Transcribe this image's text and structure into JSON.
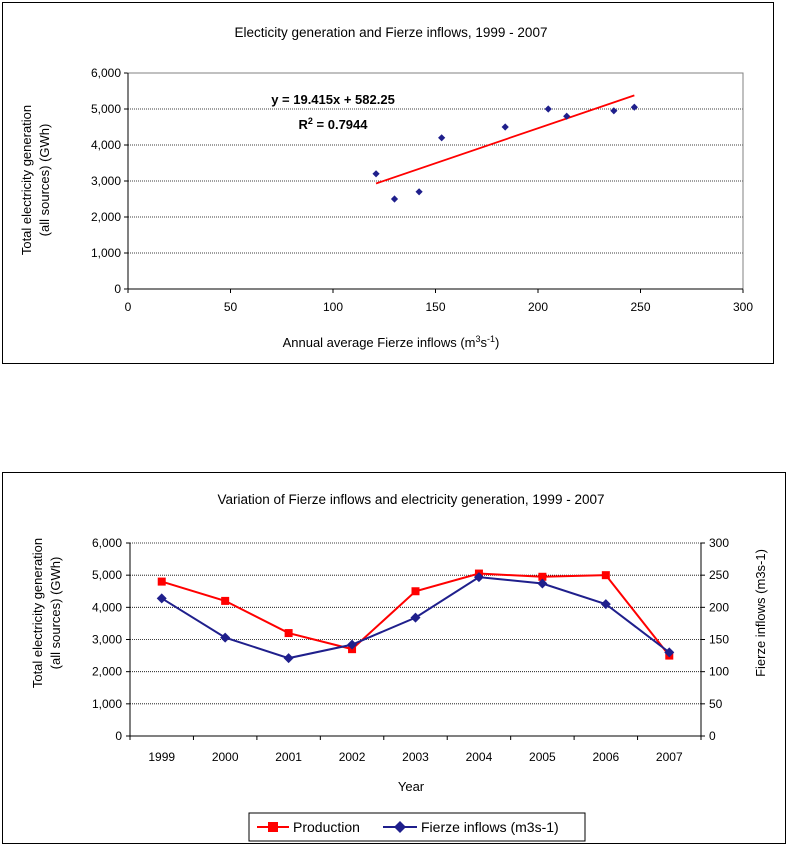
{
  "chart_data": [
    {
      "type": "scatter",
      "title": "Electicity generation and Fierze inflows, 1999 - 2007",
      "xlabel_prefix": "Annual average Fierze inflows (m",
      "xlabel_sup1": "3",
      "xlabel_mid": "s",
      "xlabel_sup2": "-1",
      "xlabel_suffix": ")",
      "ylabel_line1": "Total electricity generation",
      "ylabel_line2": "(all sources) (GWh)",
      "xlim": [
        0,
        300
      ],
      "ylim": [
        0,
        6000
      ],
      "x_ticks": [
        "0",
        "50",
        "100",
        "150",
        "200",
        "250",
        "300"
      ],
      "y_ticks": [
        "0",
        "1,000",
        "2,000",
        "3,000",
        "4,000",
        "5,000",
        "6,000"
      ],
      "grid": "horizontal",
      "points": [
        {
          "x": 121,
          "y": 3200
        },
        {
          "x": 130,
          "y": 2500
        },
        {
          "x": 142,
          "y": 2700
        },
        {
          "x": 153,
          "y": 4200
        },
        {
          "x": 184,
          "y": 4500
        },
        {
          "x": 205,
          "y": 5000
        },
        {
          "x": 214,
          "y": 4800
        },
        {
          "x": 237,
          "y": 4950
        },
        {
          "x": 247,
          "y": 5050
        }
      ],
      "trendline": {
        "x": [
          121,
          247
        ],
        "slope": 19.415,
        "intercept": 582.25,
        "equation": "y = 19.415x + 582.25",
        "r2_label": "R",
        "r2_sup": "2",
        "r2_value": " = 0.7944"
      },
      "colors": {
        "points": "#1f1f8c",
        "trendline": "#ff0000"
      }
    },
    {
      "type": "line",
      "title": "Variation of Fierze inflows and electricity generation, 1999 - 2007",
      "xlabel": "Year",
      "ylabel_line1": "Total electricity generation",
      "ylabel_line2": "(all sources) (GWh)",
      "y2label": "Fierze inflows (m3s-1)",
      "categories": [
        "1999",
        "2000",
        "2001",
        "2002",
        "2003",
        "2004",
        "2005",
        "2006",
        "2007"
      ],
      "ylim": [
        0,
        6000
      ],
      "y2lim": [
        0,
        300
      ],
      "y_ticks": [
        "0",
        "1,000",
        "2,000",
        "3,000",
        "4,000",
        "5,000",
        "6,000"
      ],
      "y2_ticks": [
        "0",
        "50",
        "100",
        "150",
        "200",
        "250",
        "300"
      ],
      "grid": "horizontal",
      "legend": "bottom",
      "series": [
        {
          "name": "Production",
          "axis": "left",
          "marker": "square",
          "color": "#ff0000",
          "values": [
            4800,
            4200,
            3200,
            2700,
            4500,
            5050,
            4950,
            5000,
            2500
          ]
        },
        {
          "name": "Fierze inflows (m3s-1)",
          "axis": "right",
          "marker": "diamond",
          "color": "#1f1f8c",
          "values": [
            214,
            153,
            121,
            142,
            184,
            247,
            237,
            205,
            130
          ]
        }
      ]
    }
  ]
}
